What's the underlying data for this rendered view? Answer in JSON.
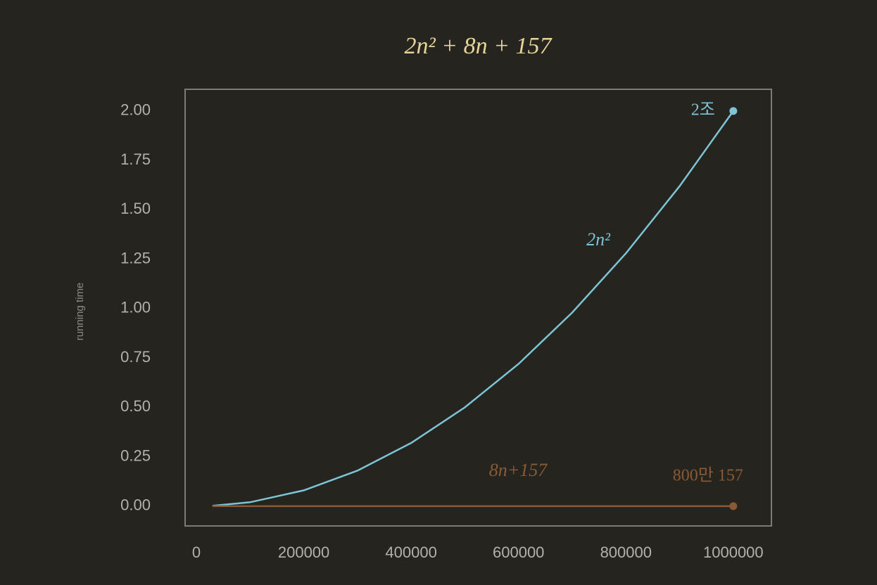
{
  "chart_data": {
    "type": "line",
    "title": "2n² + 8n + 157",
    "y_label": "running time",
    "xlim": [
      -21000,
      1071000
    ],
    "ylim": [
      -0.1,
      2.11
    ],
    "xticks": [
      0,
      200000,
      400000,
      600000,
      800000,
      1000000
    ],
    "yticks": [
      {
        "value": 0,
        "label": "0.00"
      },
      {
        "value": 0.25,
        "label": "0.25"
      },
      {
        "value": 0.5,
        "label": "0.50"
      },
      {
        "value": 0.75,
        "label": "0.75"
      },
      {
        "value": 1,
        "label": "1.00"
      },
      {
        "value": 1.25,
        "label": "1.25"
      },
      {
        "value": 1.5,
        "label": "1.50"
      },
      {
        "value": 1.75,
        "label": "1.75"
      },
      {
        "value": 2,
        "label": "2.00"
      }
    ],
    "grid": false,
    "series": [
      {
        "name": "2n²",
        "color": "#7cc4d6",
        "x": [
          30000,
          100000,
          200000,
          300000,
          400000,
          500000,
          600000,
          700000,
          800000,
          900000,
          1000000
        ],
        "values": [
          0.0018,
          0.02,
          0.08,
          0.18,
          0.32,
          0.5,
          0.72,
          0.98,
          1.28,
          1.62,
          2.0
        ],
        "value_labels": [
          null,
          null,
          null,
          null,
          null,
          null,
          null,
          null,
          null,
          null,
          "2조"
        ]
      },
      {
        "name": "8n+157",
        "color": "#8a5a34",
        "x": [
          30000,
          1000000
        ],
        "values": [
          2.40157e-07,
          8.000157e-06
        ],
        "value_labels": [
          null,
          "800만 157"
        ]
      }
    ]
  }
}
